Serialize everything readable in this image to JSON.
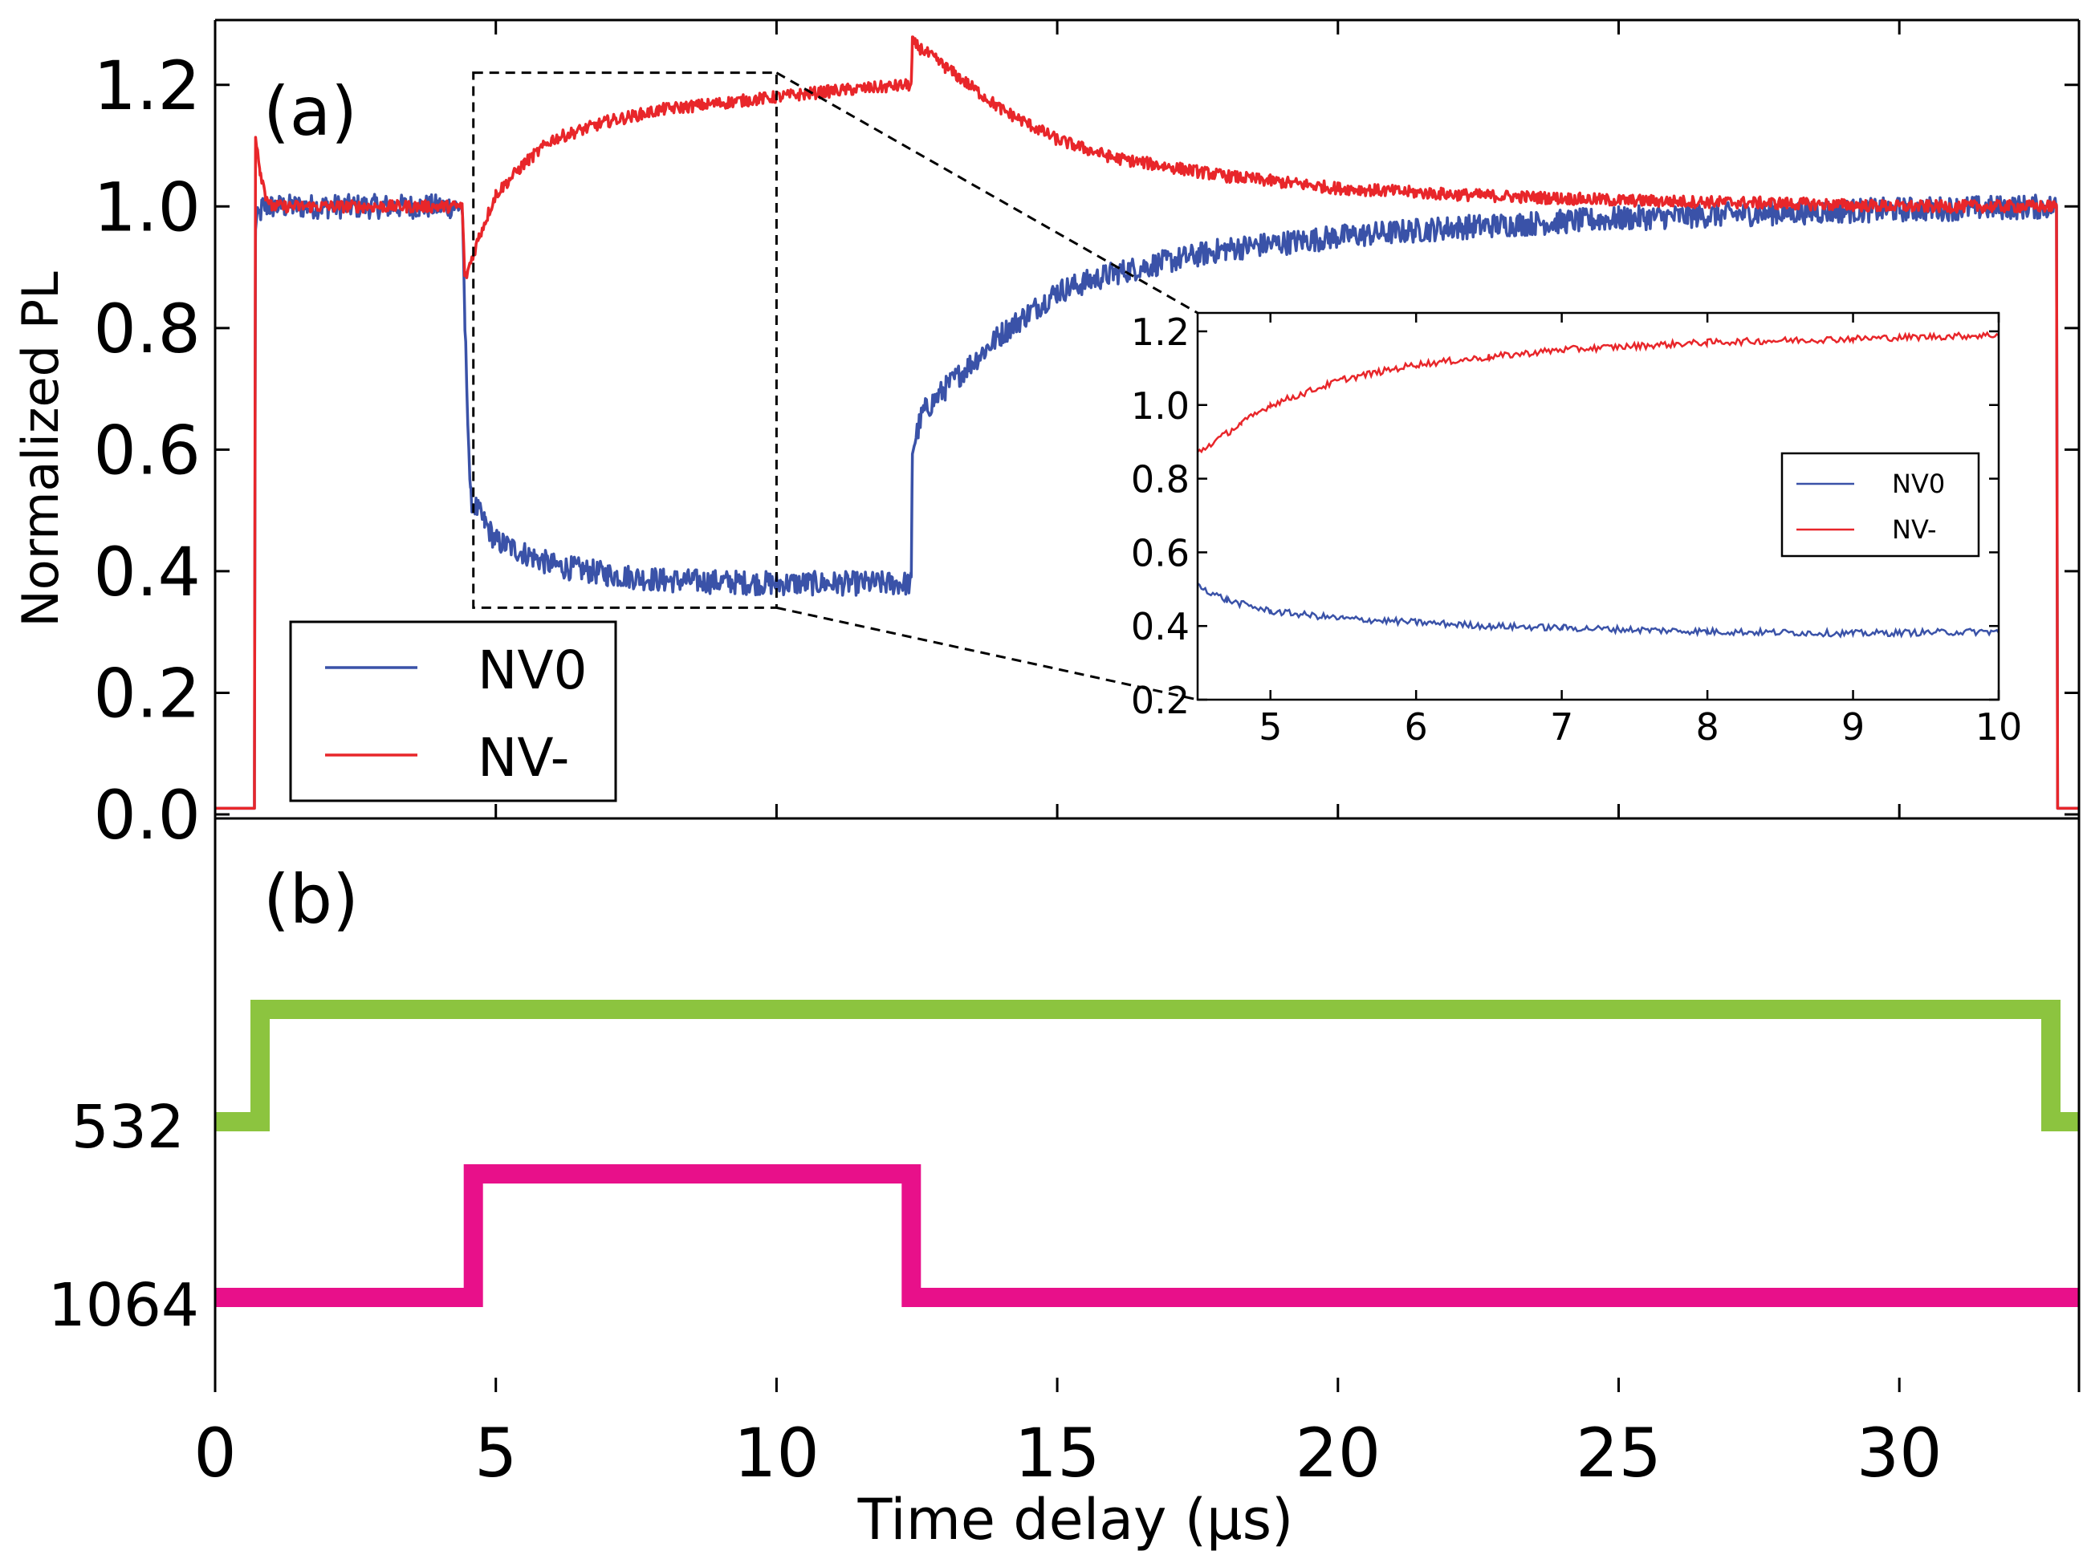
{
  "chart_data": [
    {
      "id": "main",
      "panel_label": "(a)",
      "type": "line",
      "ylabel": "Normalized PL",
      "xlim": [
        0,
        33.2
      ],
      "ylim": [
        0.0,
        1.3
      ],
      "yticks": [
        "0.0",
        "0.2",
        "0.4",
        "0.6",
        "0.8",
        "1.0",
        "1.2"
      ],
      "ytick_values": [
        0.0,
        0.2,
        0.4,
        0.6,
        0.8,
        1.0,
        1.2
      ],
      "legend": {
        "placement": "bottom-left",
        "entries": [
          "NV0",
          "NV-"
        ]
      },
      "series": [
        {
          "name": "NV0",
          "color": "#3a52a8",
          "x": [
            0,
            0.7,
            0.72,
            0.85,
            1.0,
            2.0,
            3.0,
            4.4,
            4.45,
            4.55,
            4.8,
            5.0,
            5.5,
            6.0,
            7.0,
            8.0,
            10.0,
            12.4,
            12.42,
            12.6,
            13.0,
            14.0,
            15.0,
            16.0,
            18.0,
            20.0,
            22.0,
            25.0,
            28.0,
            30.0,
            32.8,
            32.82,
            33.2
          ],
          "values": [
            0.01,
            0.01,
            0.97,
            1.0,
            1.0,
            1.0,
            1.0,
            1.0,
            0.8,
            0.52,
            0.48,
            0.45,
            0.43,
            0.41,
            0.395,
            0.385,
            0.38,
            0.38,
            0.6,
            0.66,
            0.7,
            0.79,
            0.86,
            0.89,
            0.93,
            0.95,
            0.965,
            0.98,
            0.99,
            0.995,
            1.0,
            0.01,
            0.01
          ]
        },
        {
          "name": "NV-",
          "color": "#e8262a",
          "x": [
            0,
            0.7,
            0.72,
            0.8,
            0.9,
            1.0,
            2.0,
            3.0,
            4.4,
            4.45,
            4.7,
            5.0,
            5.5,
            6.0,
            7.0,
            8.0,
            9.0,
            10.0,
            11.0,
            12.4,
            12.42,
            13.0,
            14.0,
            15.0,
            16.0,
            18.0,
            20.0,
            22.0,
            25.0,
            28.0,
            30.0,
            32.8,
            32.82,
            33.2
          ],
          "values": [
            0.01,
            0.01,
            1.12,
            1.06,
            1.02,
            1.0,
            1.0,
            1.0,
            1.0,
            0.88,
            0.95,
            1.02,
            1.07,
            1.11,
            1.14,
            1.16,
            1.17,
            1.18,
            1.19,
            1.2,
            1.27,
            1.23,
            1.16,
            1.11,
            1.08,
            1.05,
            1.03,
            1.02,
            1.01,
            1.005,
            1.0,
            1.0,
            0.01,
            0.01
          ]
        }
      ],
      "zoom_box": {
        "x": [
          4.6,
          10.0
        ],
        "y": [
          0.34,
          1.22
        ]
      }
    },
    {
      "id": "inset",
      "type": "line",
      "xlim": [
        4.5,
        10.0
      ],
      "ylim": [
        0.2,
        1.25
      ],
      "xticks": [
        "5",
        "6",
        "7",
        "8",
        "9",
        "10"
      ],
      "xtick_values": [
        5,
        6,
        7,
        8,
        9,
        10
      ],
      "yticks": [
        "0.2",
        "0.4",
        "0.6",
        "0.8",
        "1.0",
        "1.2"
      ],
      "ytick_values": [
        0.2,
        0.4,
        0.6,
        0.8,
        1.0,
        1.2
      ],
      "legend": {
        "placement": "right",
        "entries": [
          "NV0",
          "NV-"
        ]
      },
      "series": [
        {
          "name": "NV0",
          "color": "#3a52a8",
          "x": [
            4.5,
            4.7,
            5.0,
            5.5,
            6.0,
            6.5,
            7.0,
            8.0,
            9.0,
            10.0
          ],
          "values": [
            0.51,
            0.47,
            0.44,
            0.42,
            0.41,
            0.4,
            0.395,
            0.385,
            0.38,
            0.385
          ]
        },
        {
          "name": "NV-",
          "color": "#e8262a",
          "x": [
            4.5,
            4.8,
            5.0,
            5.5,
            6.0,
            6.5,
            7.0,
            8.0,
            9.0,
            10.0
          ],
          "values": [
            0.87,
            0.95,
            1.0,
            1.07,
            1.11,
            1.13,
            1.15,
            1.17,
            1.18,
            1.19
          ]
        }
      ]
    },
    {
      "id": "pulses",
      "panel_label": "(b)",
      "type": "line",
      "xlabel": "Time delay (μs)",
      "xlim": [
        0,
        33.2
      ],
      "xticks": [
        "0",
        "5",
        "10",
        "15",
        "20",
        "25",
        "30"
      ],
      "xtick_values": [
        0,
        5,
        10,
        15,
        20,
        25,
        30
      ],
      "yticks": [
        "532",
        "1064"
      ],
      "series": [
        {
          "name": "532",
          "color": "#8cc43f",
          "x": [
            0,
            0.8,
            0.8,
            32.7,
            32.7,
            33.2
          ],
          "values": [
            0,
            0,
            1,
            1,
            0,
            0
          ]
        },
        {
          "name": "1064",
          "color": "#e8108a",
          "x": [
            0,
            4.6,
            4.6,
            12.4,
            12.4,
            33.2
          ],
          "values": [
            0,
            0,
            1,
            1,
            0,
            0
          ]
        }
      ]
    }
  ]
}
